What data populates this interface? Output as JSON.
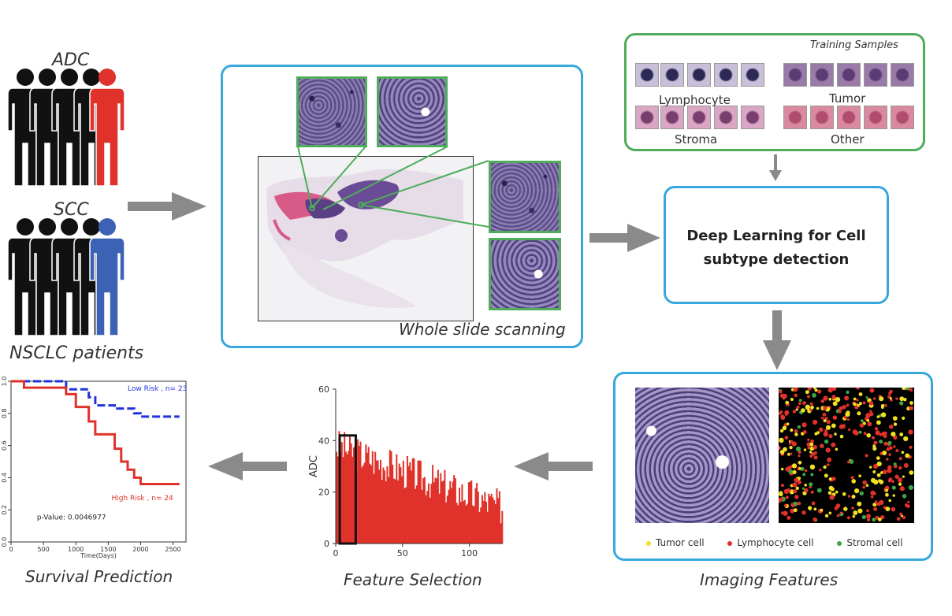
{
  "patients": {
    "adc_label": "ADC",
    "scc_label": "SCC",
    "group_label": "NSCLC patients",
    "colors": {
      "adc_highlight": "#e0322a",
      "scc_highlight": "#3b62b4",
      "base": "#111111"
    }
  },
  "scanning": {
    "caption": "Whole slide scanning"
  },
  "training": {
    "title": "Training Samples",
    "classes": [
      "Lymphocyte",
      "Tumor",
      "Stroma",
      "Other"
    ]
  },
  "deep_learning": {
    "line1": "Deep Learning for Cell",
    "line2": "subtype detection"
  },
  "imaging": {
    "caption": "Imaging Features",
    "legend": [
      {
        "label": "Tumor cell",
        "color": "#f2e022"
      },
      {
        "label": "Lymphocyte cell",
        "color": "#e0322a"
      },
      {
        "label": "Stromal cell",
        "color": "#3aa648"
      }
    ]
  },
  "feature_selection": {
    "caption": "Feature Selection",
    "ylabel": "ADC",
    "yticks": [
      "0",
      "20",
      "40",
      "60"
    ],
    "xticks": [
      "0",
      "50",
      "100"
    ]
  },
  "survival": {
    "caption": "Survival Prediction",
    "low_label": "Low Risk , n= 23",
    "high_label": "High Risk , n= 24",
    "pvalue": "p-Value: 0.0046977",
    "xlabel": "Time(Days)",
    "xticks": [
      "0",
      "500",
      "1000",
      "1500",
      "2000",
      "2500"
    ],
    "yticks": [
      "0.0",
      "0.2",
      "0.4",
      "0.6",
      "0.8",
      "1.0"
    ],
    "colors": {
      "low": "#2233dd",
      "high": "#e0322a"
    }
  },
  "chart_data": [
    {
      "type": "line",
      "x": [
        0,
        200,
        400,
        600,
        800,
        850,
        1000,
        1200,
        1300,
        1500,
        1600,
        1700,
        1800,
        1900,
        2000,
        2200,
        2400,
        2600
      ],
      "series": [
        {
          "name": "Low Risk , n= 23",
          "values": [
            1.0,
            1.0,
            1.0,
            1.0,
            1.0,
            0.95,
            0.95,
            0.9,
            0.85,
            0.85,
            0.83,
            0.83,
            0.83,
            0.8,
            0.78,
            0.78,
            0.78,
            0.78
          ]
        },
        {
          "name": "High Risk , n= 24",
          "values": [
            1.0,
            0.96,
            0.96,
            0.96,
            0.96,
            0.92,
            0.84,
            0.75,
            0.67,
            0.67,
            0.58,
            0.5,
            0.45,
            0.4,
            0.36,
            0.36,
            0.36,
            0.36
          ]
        }
      ],
      "xlabel": "Time(Days)",
      "xlim": [
        0,
        2700
      ],
      "ylim": [
        0,
        1.0
      ],
      "annotations": [
        "p-Value: 0.0046977"
      ]
    },
    {
      "type": "bar",
      "ylabel": "ADC",
      "xlim": [
        0,
        125
      ],
      "ylim": [
        0,
        60
      ],
      "highlight_range": [
        3,
        15
      ],
      "bar_count": 125,
      "trend": {
        "start": 38,
        "end": 14
      }
    }
  ]
}
